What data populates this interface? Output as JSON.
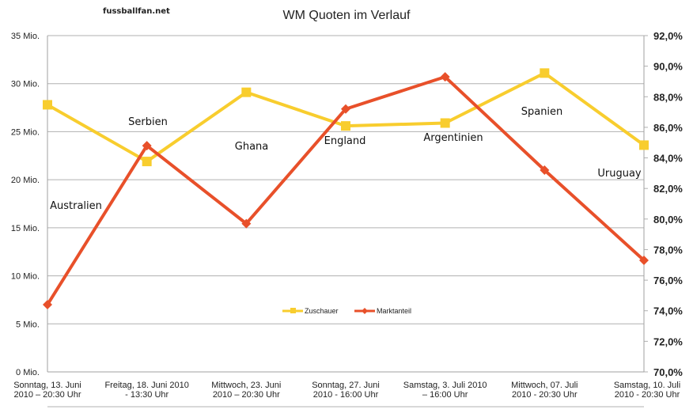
{
  "chart_data": {
    "type": "line",
    "title": "WM Quoten im Verlauf",
    "watermark": "fussballfan.net",
    "categories": [
      [
        "Sonntag, 13. Juni",
        "2010 – 20:30 Uhr"
      ],
      [
        "Freitag, 18. Juni 2010",
        "- 13:30 Uhr"
      ],
      [
        "Mittwoch, 23. Juni",
        "2010 – 20:30 Uhr"
      ],
      [
        "Sonntag, 27. Juni",
        "2010 - 16:00 Uhr"
      ],
      [
        "Samstag, 3. Juli 2010",
        "– 16:00 Uhr"
      ],
      [
        "Mittwoch, 07. Juli",
        "2010 - 20:30 Uhr"
      ],
      [
        "Samstag, 10. Juli",
        "2010 - 20:30 Uhr"
      ]
    ],
    "annotations": [
      "Australien",
      "Serbien",
      "Ghana",
      "England",
      "Argentinien",
      "Spanien",
      "Uruguay"
    ],
    "series": [
      {
        "name": "Zuschauer",
        "axis": "left",
        "color": "#f8cd2e",
        "marker": "square",
        "values": [
          27.8,
          21.9,
          29.1,
          25.6,
          25.9,
          31.1,
          23.6
        ]
      },
      {
        "name": "Marktanteil",
        "axis": "right",
        "color": "#e8502a",
        "marker": "diamond",
        "values": [
          74.4,
          84.8,
          79.7,
          87.2,
          89.3,
          83.2,
          77.3
        ]
      }
    ],
    "y_left": {
      "range": [
        0,
        35
      ],
      "ticks": [
        0,
        5,
        10,
        15,
        20,
        25,
        30,
        35
      ],
      "tick_labels": [
        "0 Mio.",
        "5 Mio.",
        "10 Mio.",
        "15 Mio.",
        "20 Mio.",
        "25 Mio.",
        "30 Mio.",
        "35 Mio."
      ]
    },
    "y_right": {
      "range": [
        70,
        92
      ],
      "ticks": [
        70,
        72,
        74,
        76,
        78,
        80,
        82,
        84,
        86,
        88,
        90,
        92
      ],
      "tick_labels": [
        "70,0%",
        "72,0%",
        "74,0%",
        "76,0%",
        "78,0%",
        "80,0%",
        "82,0%",
        "84,0%",
        "86,0%",
        "88,0%",
        "90,0%",
        "92,0%"
      ]
    },
    "grid": true,
    "legend_position": "bottom-center"
  }
}
